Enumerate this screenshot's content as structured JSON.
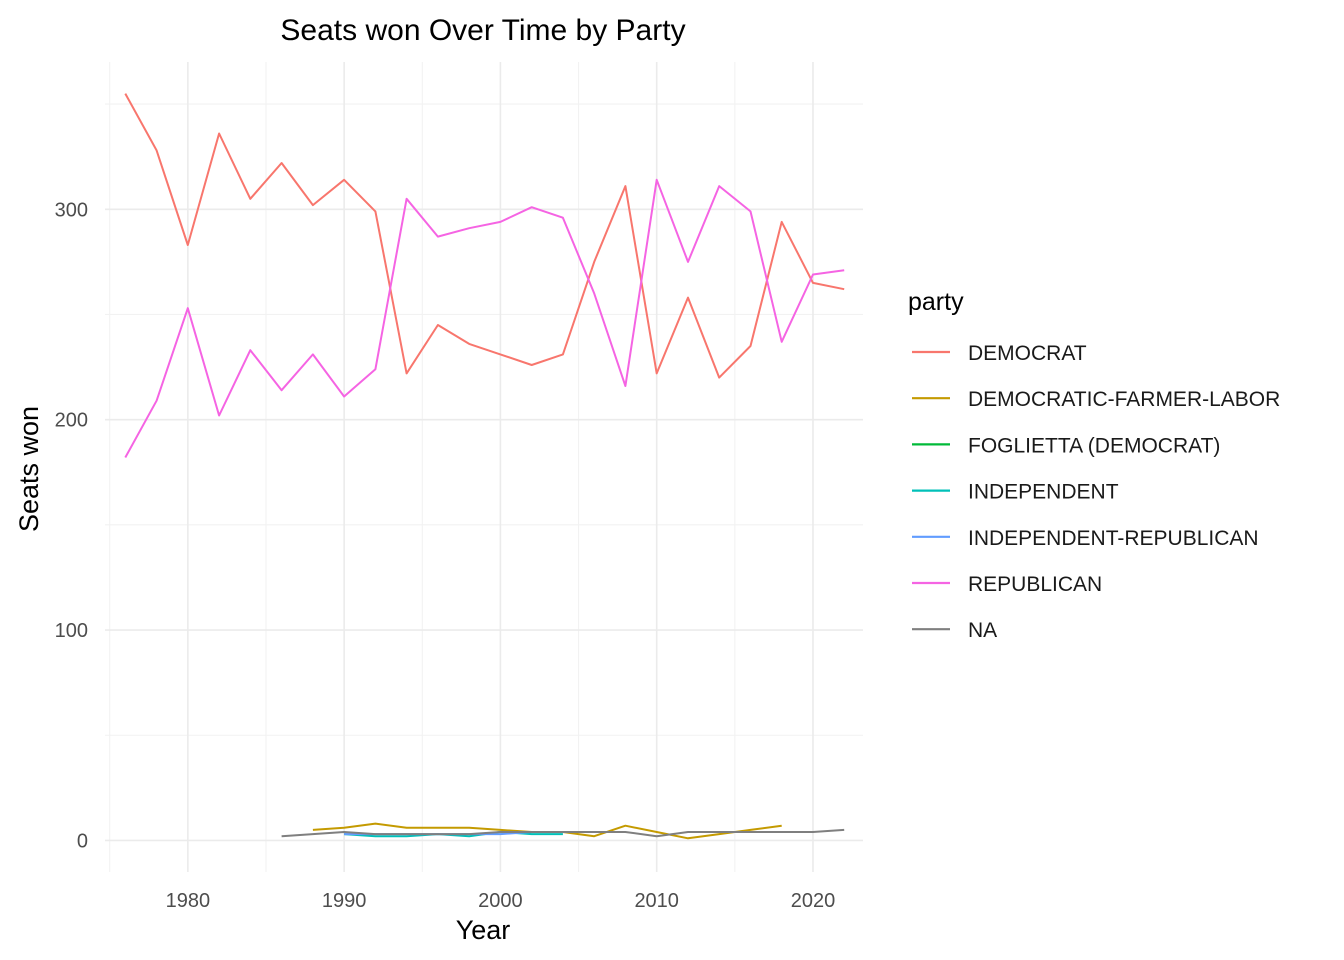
{
  "chart_data": {
    "type": "line",
    "title": "Seats won Over Time by Party",
    "xlabel": "Year",
    "ylabel": "Seats won",
    "xlim": [
      1974.7,
      2023.2
    ],
    "ylim": [
      -15,
      370
    ],
    "x_ticks": [
      1980,
      1990,
      2000,
      2010,
      2020
    ],
    "y_ticks": [
      0,
      100,
      200,
      300
    ],
    "grid": true,
    "legend": {
      "title": "party",
      "position": "right"
    },
    "series": [
      {
        "name": "DEMOCRAT",
        "color": "#F8766D",
        "x": [
          1976,
          1978,
          1980,
          1982,
          1984,
          1986,
          1988,
          1990,
          1992,
          1994,
          1996,
          1998,
          2000,
          2002,
          2004,
          2006,
          2008,
          2010,
          2012,
          2014,
          2016,
          2018,
          2020,
          2022
        ],
        "values": [
          355,
          328,
          283,
          336,
          305,
          322,
          302,
          314,
          299,
          222,
          245,
          236,
          231,
          226,
          231,
          275,
          311,
          222,
          258,
          220,
          235,
          294,
          265,
          262
        ]
      },
      {
        "name": "DEMOCRATIC-FARMER-LABOR",
        "color": "#C49A00",
        "x": [
          1988,
          1990,
          1992,
          1994,
          1996,
          1998,
          2000,
          2002,
          2004,
          2006,
          2008,
          2010,
          2012,
          2014,
          2016,
          2018
        ],
        "values": [
          5,
          6,
          8,
          6,
          6,
          6,
          5,
          4,
          4,
          2,
          7,
          4,
          1,
          3,
          5,
          7
        ]
      },
      {
        "name": "FOGLIETTA (DEMOCRAT)",
        "color": "#00BA38",
        "x": [
          1988
        ],
        "values": [
          1
        ]
      },
      {
        "name": "INDEPENDENT",
        "color": "#00C0B8",
        "x": [
          1990,
          1992,
          1994,
          1996,
          1998,
          2000,
          2002,
          2004
        ],
        "values": [
          3,
          2,
          2,
          3,
          2,
          4,
          3,
          3
        ]
      },
      {
        "name": "INDEPENDENT-REPUBLICAN",
        "color": "#619CFF",
        "x": [
          1990,
          1992,
          1994,
          1996,
          1998,
          2000,
          2002,
          2004
        ],
        "values": [
          3,
          3,
          3,
          3,
          3,
          3,
          4,
          4
        ]
      },
      {
        "name": "REPUBLICAN",
        "color": "#F564E3",
        "x": [
          1976,
          1978,
          1980,
          1982,
          1984,
          1986,
          1988,
          1990,
          1992,
          1994,
          1996,
          1998,
          2000,
          2002,
          2004,
          2006,
          2008,
          2010,
          2012,
          2014,
          2016,
          2018,
          2020,
          2022
        ],
        "values": [
          182,
          209,
          253,
          202,
          233,
          214,
          231,
          211,
          224,
          305,
          287,
          291,
          294,
          301,
          296,
          260,
          216,
          314,
          275,
          311,
          299,
          237,
          269,
          271
        ]
      },
      {
        "name": "NA",
        "color": "#7F7F7F",
        "x": [
          1986,
          1988,
          1990,
          1992,
          1994,
          1996,
          1998,
          2000,
          2002,
          2004,
          2006,
          2008,
          2010,
          2012,
          2014,
          2016,
          2018,
          2020,
          2022
        ],
        "values": [
          2,
          3,
          4,
          3,
          3,
          3,
          3,
          4,
          4,
          4,
          4,
          4,
          2,
          4,
          4,
          4,
          4,
          4,
          5
        ]
      }
    ]
  }
}
